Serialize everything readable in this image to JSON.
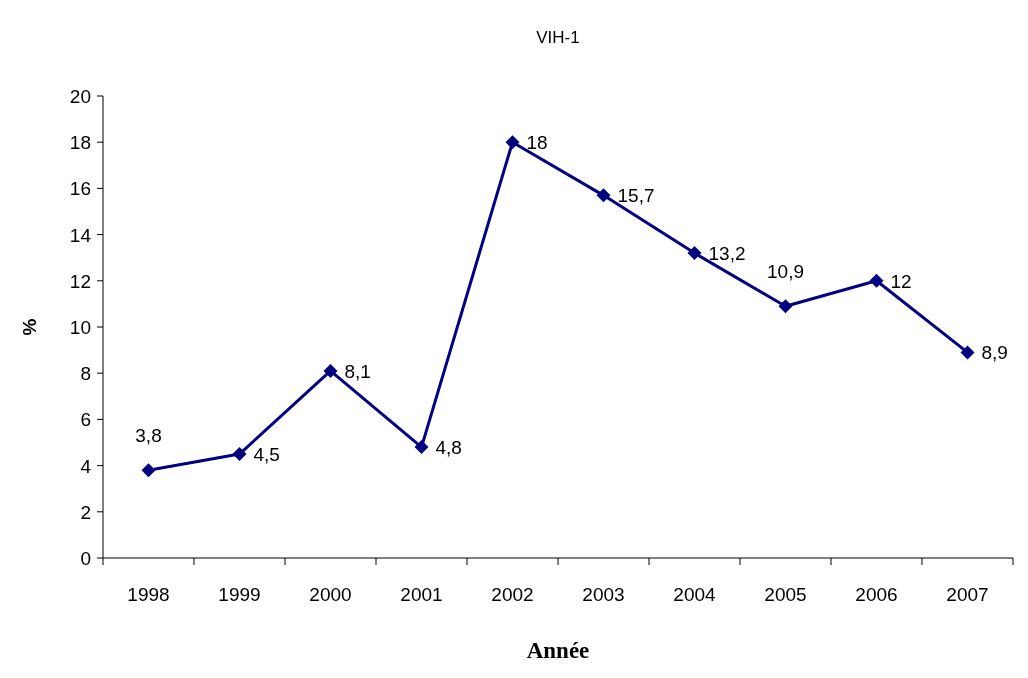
{
  "chart_data": {
    "type": "line",
    "title": "VIH-1",
    "xlabel": "Année",
    "ylabel": "%",
    "categories": [
      "1998",
      "1999",
      "2000",
      "2001",
      "2002",
      "2003",
      "2004",
      "2005",
      "2006",
      "2007"
    ],
    "series": [
      {
        "color": "#000080",
        "values": [
          3.8,
          4.5,
          8.1,
          4.8,
          18,
          15.7,
          13.2,
          10.9,
          12,
          8.9
        ],
        "value_labels": [
          "3,8",
          "4,5",
          "8,1",
          "4,8",
          "18",
          "15,7",
          "13,2",
          "10,9",
          "12",
          "8,9"
        ]
      }
    ],
    "ylim": [
      0,
      20
    ],
    "yticks": [
      0,
      2,
      4,
      6,
      8,
      10,
      12,
      14,
      16,
      18,
      20
    ],
    "marker": "diamond",
    "line_style": "solid",
    "grid": false
  }
}
